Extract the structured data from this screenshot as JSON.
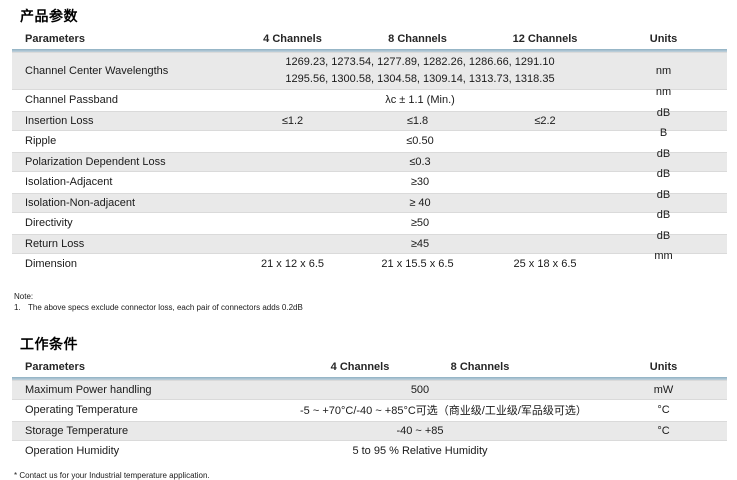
{
  "section1": {
    "title": "产品参数",
    "table": {
      "col_parameters": "Parameters",
      "col_ch4": "4 Channels",
      "col_ch8": "8 Channels",
      "col_ch12": "12 Channels",
      "col_units": "Units",
      "rows": [
        {
          "param": "Channel Center Wavelengths",
          "line1": "1269.23, 1273.54, 1277.89, 1282.26, 1286.66, 1291.10",
          "line2": "1295.56, 1300.58, 1304.58, 1309.14, 1313.73, 1318.35",
          "unit": "nm"
        },
        {
          "param": "Channel Passband",
          "value": "λc ± 1.1 (Min.)",
          "unit": "nm"
        },
        {
          "param": "Insertion Loss",
          "ch4": "≤1.2",
          "ch8": "≤1.8",
          "ch12": "≤2.2",
          "unit": "dB"
        },
        {
          "param": "Ripple",
          "value": "≤0.50",
          "unit": "B"
        },
        {
          "param": "Polarization Dependent Loss",
          "value": "≤0.3",
          "unit": "dB"
        },
        {
          "param": "Isolation-Adjacent",
          "value": "≥30",
          "unit": "dB"
        },
        {
          "param": "Isolation-Non-adjacent",
          "value": "≥ 40",
          "unit": "dB"
        },
        {
          "param": "Directivity",
          "value": "≥50",
          "unit": "dB"
        },
        {
          "param": "Return Loss",
          "value": "≥45",
          "unit": "dB"
        },
        {
          "param": "Dimension",
          "ch4": "21 x 12 x 6.5",
          "ch8": "21 x 15.5 x 6.5",
          "ch12": "25 x 18 x 6.5",
          "unit": "mm"
        }
      ]
    },
    "note": {
      "label": "Note:",
      "item_no": "1.",
      "item_text": "The above specs exclude connector loss, each pair of connectors adds 0.2dB"
    }
  },
  "section2": {
    "title": "工作条件",
    "table": {
      "col_parameters": "Parameters",
      "col_ch4": "4 Channels",
      "col_ch8": "8 Channels",
      "col_units": "Units",
      "rows": [
        {
          "param": "Maximum Power handling",
          "value": "500",
          "unit": "mW"
        },
        {
          "param": "Operating Temperature",
          "value": "-5 ~ +70°C/-40 ~ +85°C可选（商业级/工业级/军品级可选）",
          "unit": "°C"
        },
        {
          "param": "Storage Temperature",
          "value": "-40 ~ +85",
          "unit": "°C"
        },
        {
          "param": "Operation Humidity",
          "value": "5 to 95 % Relative Humidity",
          "unit": ""
        }
      ]
    },
    "footnote": "* Contact us for your Industrial temperature application."
  },
  "colors": {
    "stripe": "#e9e9e9",
    "header_rule": "#a9c3d2"
  }
}
